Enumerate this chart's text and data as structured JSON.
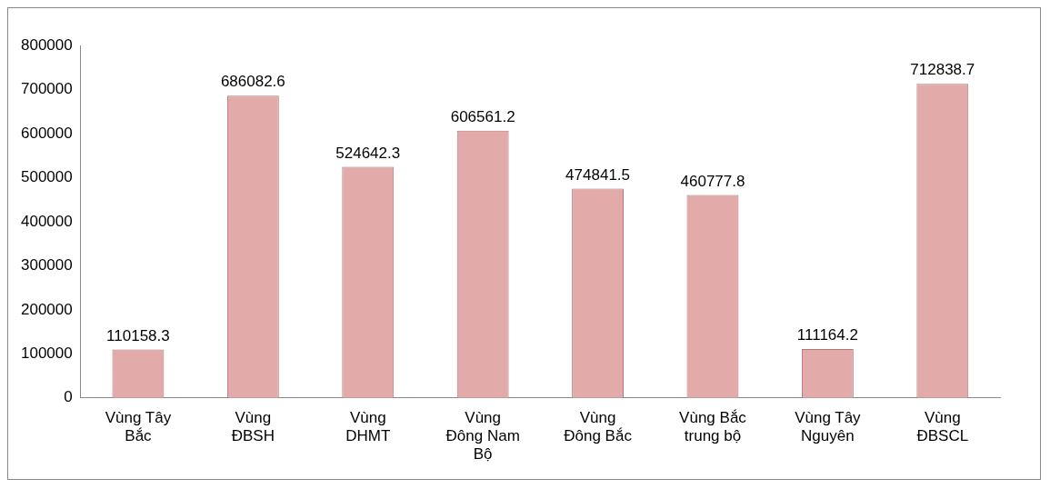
{
  "chart_data": {
    "type": "bar",
    "categories": [
      "Vùng Tây Bắc",
      "Vùng ĐBSH",
      "Vùng DHMT",
      "Vùng Đông Nam Bộ",
      "Vùng Đông Bắc",
      "Vùng Bắc trung bộ",
      "Vùng Tây Nguyên",
      "Vùng ĐBSCL"
    ],
    "values": [
      110158.3,
      686082.6,
      524642.3,
      606561.2,
      474841.5,
      460777.8,
      111164.2,
      712838.7
    ],
    "color": "#e3aaaa",
    "ylim": [
      0,
      800000
    ],
    "yticks": [
      0,
      100000,
      200000,
      300000,
      400000,
      500000,
      600000,
      700000,
      800000
    ],
    "data_labels": true,
    "grid": false,
    "legend": false
  }
}
